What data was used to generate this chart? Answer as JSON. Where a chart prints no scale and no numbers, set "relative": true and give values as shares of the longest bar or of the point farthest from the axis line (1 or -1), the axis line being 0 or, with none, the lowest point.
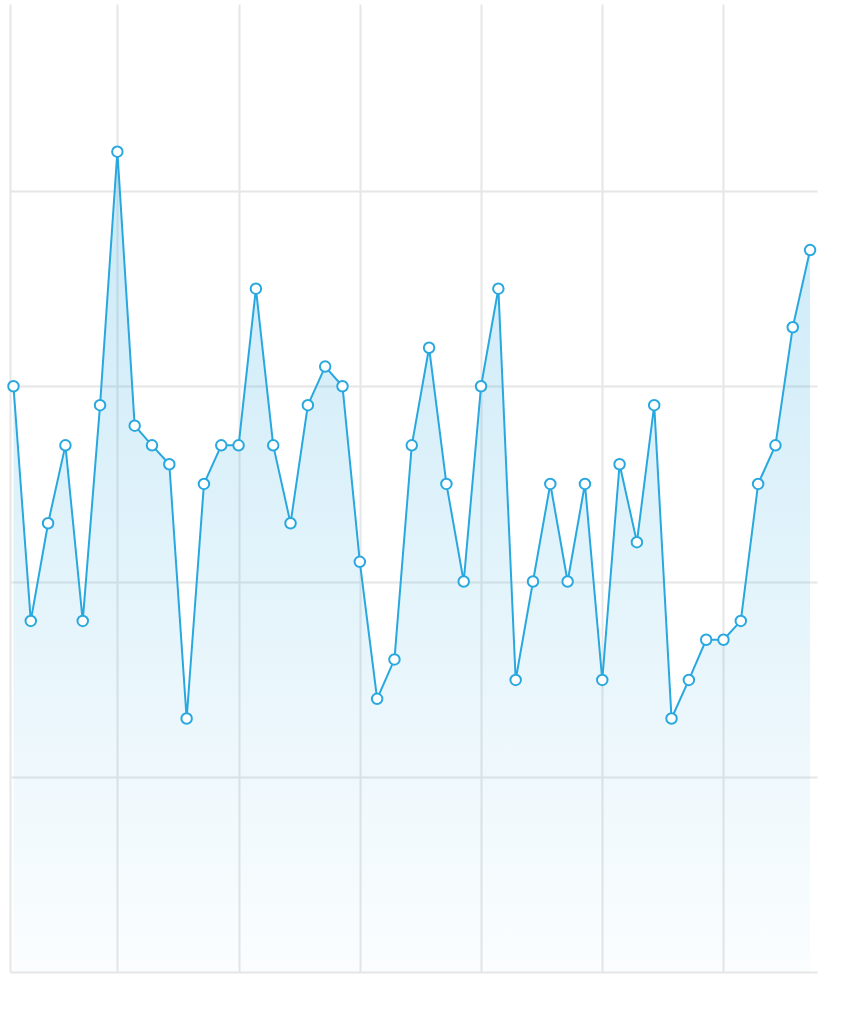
{
  "chart_data": {
    "type": "area",
    "relative": true,
    "grid": true,
    "marker": "circle",
    "line_style": "solid",
    "categories": [
      null,
      null,
      null,
      null,
      null,
      null,
      null,
      null,
      null,
      null,
      null,
      null,
      null,
      null,
      null,
      null,
      null,
      null,
      null,
      null,
      null,
      null,
      null,
      null,
      null,
      null,
      null,
      null,
      null,
      null,
      null,
      null,
      null,
      null,
      null,
      null,
      null,
      null,
      null,
      null,
      null,
      null,
      null,
      null,
      null,
      null,
      null
    ],
    "series": [
      {
        "color": "#29a8e0",
        "values": [
          0.714,
          0.428,
          0.547,
          0.642,
          0.428,
          0.691,
          1,
          0.666,
          0.642,
          0.619,
          0.309,
          0.595,
          0.642,
          0.642,
          0.833,
          0.642,
          0.547,
          0.691,
          0.738,
          0.714,
          0.5,
          0.333,
          0.381,
          0.642,
          0.761,
          0.595,
          0.476,
          0.714,
          0.833,
          0.356,
          0.476,
          0.595,
          0.476,
          0.595,
          0.356,
          0.619,
          0.524,
          0.691,
          0.309,
          0.356,
          0.405,
          0.405,
          0.428,
          0.595,
          0.642,
          0.786,
          0.88
        ]
      }
    ]
  }
}
